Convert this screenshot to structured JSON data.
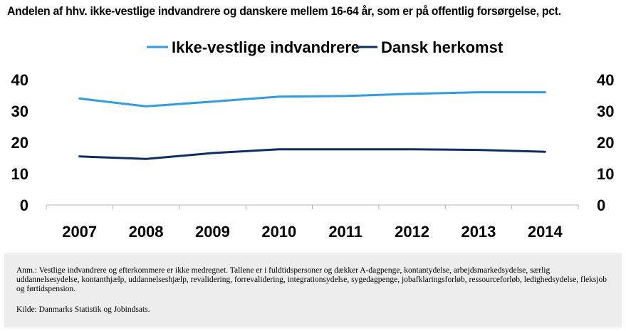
{
  "title": "Andelen af hhv. ikke-vestlige indvandrere og danskere mellem 16-64 år, som er på offentlig forsørgelse, pct.",
  "colors": {
    "ikke_vestlige": "#2b9df0",
    "dansk": "#0b2d6b",
    "axis": "#b4b4b4",
    "note_background": "#ededed"
  },
  "chart_data": {
    "type": "line",
    "categories": [
      "2007",
      "2008",
      "2009",
      "2010",
      "2011",
      "2012",
      "2013",
      "2014"
    ],
    "series": [
      {
        "name": "Ikke-vestlige indvandrere",
        "values": [
          34.0,
          31.5,
          33.0,
          34.6,
          34.8,
          35.5,
          36.0,
          36.0
        ]
      },
      {
        "name": "Dansk herkomst",
        "values": [
          15.5,
          14.7,
          16.6,
          17.8,
          17.8,
          17.8,
          17.6,
          17.0
        ]
      }
    ],
    "ylim": [
      0,
      40
    ],
    "yticks": [
      "0",
      "10",
      "20",
      "30",
      "40"
    ],
    "legend_position": "top-center",
    "grid": false,
    "dual_y_axis_labels": true
  },
  "note": {
    "anm": "Anm.: Vestlige indvandrere og efterkommere er ikke medregnet. Tallene er i fuldtidspersoner og dækker A-dagpenge, kontantydelse, arbejdsmarkedsydelse, særlig uddannelsesydelse, kontanthjælp, uddannelseshjælp, revalidering, forrevalidering, integrationsydelse, sygedagpenge, jobafklaringsforløb, ressourceforløb, ledighedsydelse, fleksjob og førtidspension.",
    "kilde": "Kilde: Danmarks Statistik og Jobindsats."
  }
}
